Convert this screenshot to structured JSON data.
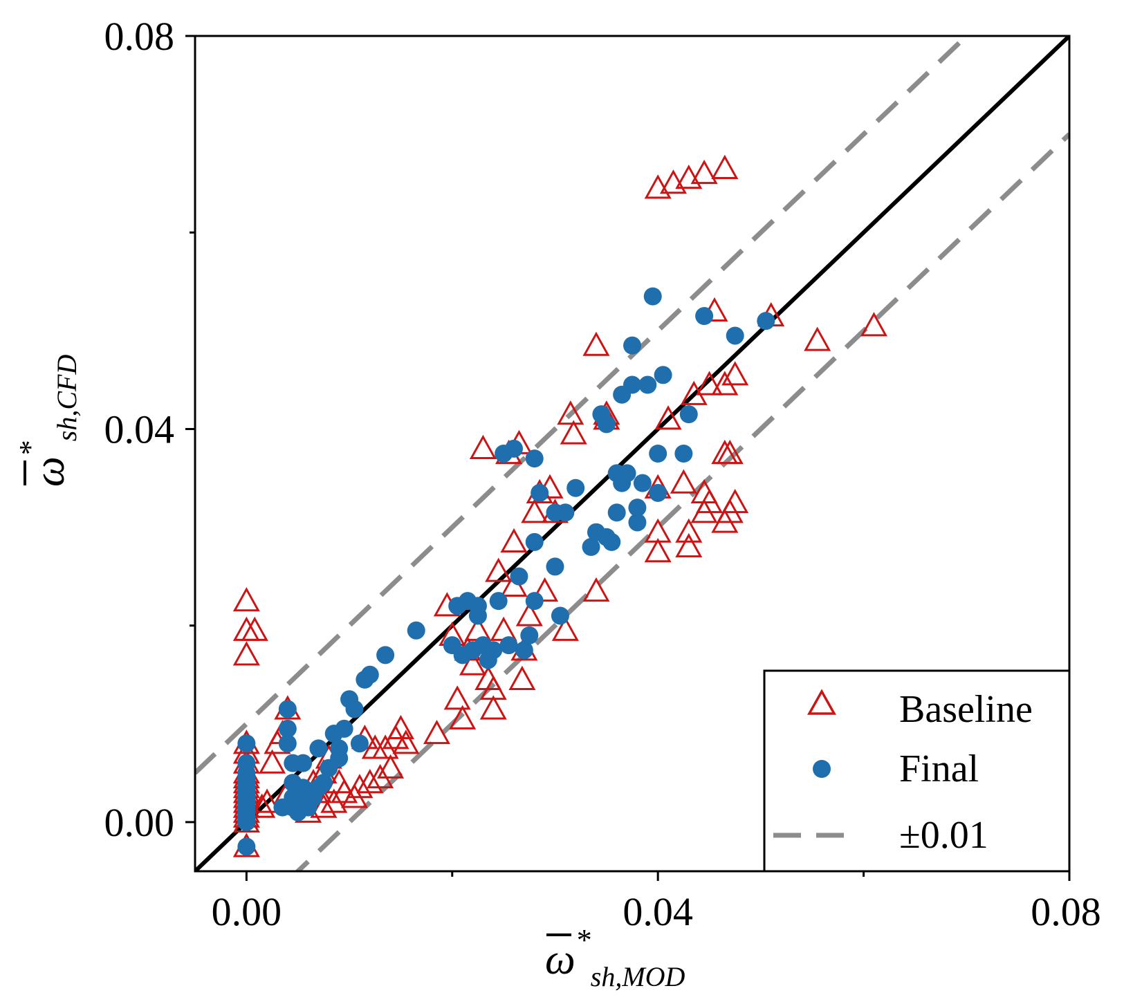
{
  "chart_data": {
    "type": "scatter",
    "title": "",
    "xlabel": {
      "symbol": "ω",
      "sup": "*",
      "sub": "sh,MOD"
    },
    "ylabel": {
      "symbol": "ω",
      "sup": "*",
      "sub": "sh,CFD"
    },
    "xlim": [
      -0.005,
      0.08
    ],
    "ylim": [
      -0.005,
      0.08
    ],
    "x_ticks": [
      0.0,
      0.04,
      0.08
    ],
    "x_tick_labels": [
      "0.00",
      "0.04",
      "0.08"
    ],
    "y_ticks": [
      0.0,
      0.04,
      0.08
    ],
    "y_tick_labels": [
      "0.00",
      "0.04",
      "0.08"
    ],
    "minor_ticks": [
      0.02,
      0.06
    ],
    "grid": false,
    "legend_position": "bottom-right",
    "reference_lines": [
      {
        "name": "y=x",
        "offset": 0.0,
        "style": "solid",
        "color": "#000000"
      },
      {
        "name": "+0.01",
        "offset": 0.01,
        "style": "dashed",
        "color": "#8c8c8c"
      },
      {
        "name": "-0.01",
        "offset": -0.01,
        "style": "dashed",
        "color": "#8c8c8c"
      }
    ],
    "series": [
      {
        "name": "Baseline",
        "marker": "triangle-open",
        "color": "#cc1414",
        "points": [
          [
            0.0,
            0.0
          ],
          [
            0.0,
            0.0005
          ],
          [
            0.0,
            0.001
          ],
          [
            0.0,
            0.0015
          ],
          [
            0.0,
            0.002
          ],
          [
            0.0,
            0.0025
          ],
          [
            0.0,
            0.003
          ],
          [
            0.0,
            0.0035
          ],
          [
            0.0,
            0.004
          ],
          [
            0.0,
            0.0045
          ],
          [
            0.0,
            0.005
          ],
          [
            0.0,
            0.006
          ],
          [
            0.0,
            0.007
          ],
          [
            0.0,
            0.008
          ],
          [
            0.0,
            -0.0025
          ],
          [
            0.0,
            0.0225
          ],
          [
            0.0,
            0.0195
          ],
          [
            0.0,
            0.017
          ],
          [
            0.0008,
            0.0195
          ],
          [
            0.0015,
            0.0015
          ],
          [
            0.002,
            0.002
          ],
          [
            0.0025,
            0.006
          ],
          [
            0.003,
            0.008
          ],
          [
            0.0035,
            0.009
          ],
          [
            0.004,
            0.0115
          ],
          [
            0.004,
            0.003
          ],
          [
            0.0045,
            0.002
          ],
          [
            0.005,
            0.002
          ],
          [
            0.006,
            0.001
          ],
          [
            0.0065,
            0.004
          ],
          [
            0.007,
            0.003
          ],
          [
            0.0075,
            0.005
          ],
          [
            0.0075,
            0.0015
          ],
          [
            0.008,
            0.0065
          ],
          [
            0.0085,
            0.002
          ],
          [
            0.009,
            0.004
          ],
          [
            0.0095,
            0.003
          ],
          [
            0.0105,
            0.0025
          ],
          [
            0.011,
            0.0035
          ],
          [
            0.0115,
            0.0085
          ],
          [
            0.012,
            0.004
          ],
          [
            0.0125,
            0.0075
          ],
          [
            0.013,
            0.0045
          ],
          [
            0.0135,
            0.0075
          ],
          [
            0.014,
            0.0055
          ],
          [
            0.0145,
            0.0085
          ],
          [
            0.015,
            0.0095
          ],
          [
            0.0155,
            0.008
          ],
          [
            0.0185,
            0.009
          ],
          [
            0.0195,
            0.022
          ],
          [
            0.02,
            0.019
          ],
          [
            0.0205,
            0.0125
          ],
          [
            0.021,
            0.0105
          ],
          [
            0.0215,
            0.0175
          ],
          [
            0.022,
            0.016
          ],
          [
            0.0225,
            0.0195
          ],
          [
            0.023,
            0.038
          ],
          [
            0.0235,
            0.0145
          ],
          [
            0.024,
            0.0115
          ],
          [
            0.024,
            0.0135
          ],
          [
            0.0245,
            0.0255
          ],
          [
            0.025,
            0.0195
          ],
          [
            0.0255,
            0.0375
          ],
          [
            0.026,
            0.0285
          ],
          [
            0.026,
            0.024
          ],
          [
            0.0265,
            0.0385
          ],
          [
            0.0268,
            0.0145
          ],
          [
            0.027,
            0.0175
          ],
          [
            0.0275,
            0.021
          ],
          [
            0.028,
            0.0315
          ],
          [
            0.0285,
            0.0335
          ],
          [
            0.029,
            0.0235
          ],
          [
            0.0295,
            0.034
          ],
          [
            0.03,
            0.0315
          ],
          [
            0.031,
            0.0195
          ],
          [
            0.0315,
            0.0415
          ],
          [
            0.0318,
            0.0395
          ],
          [
            0.034,
            0.0485
          ],
          [
            0.034,
            0.0235
          ],
          [
            0.035,
            0.041
          ],
          [
            0.035,
            0.0415
          ],
          [
            0.04,
            0.0645
          ],
          [
            0.0415,
            0.065
          ],
          [
            0.043,
            0.0655
          ],
          [
            0.0445,
            0.066
          ],
          [
            0.0465,
            0.0665
          ],
          [
            0.04,
            0.034
          ],
          [
            0.04,
            0.0295
          ],
          [
            0.04,
            0.0275
          ],
          [
            0.041,
            0.041
          ],
          [
            0.0425,
            0.0345
          ],
          [
            0.043,
            0.0295
          ],
          [
            0.043,
            0.028
          ],
          [
            0.0435,
            0.0435
          ],
          [
            0.0445,
            0.0315
          ],
          [
            0.0445,
            0.0335
          ],
          [
            0.045,
            0.0325
          ],
          [
            0.045,
            0.0445
          ],
          [
            0.0455,
            0.052
          ],
          [
            0.0465,
            0.0445
          ],
          [
            0.0465,
            0.0375
          ],
          [
            0.0465,
            0.0305
          ],
          [
            0.047,
            0.0315
          ],
          [
            0.047,
            0.0375
          ],
          [
            0.0475,
            0.0455
          ],
          [
            0.0475,
            0.0325
          ],
          [
            0.051,
            0.0515
          ],
          [
            0.0555,
            0.049
          ],
          [
            0.061,
            0.0505
          ]
        ]
      },
      {
        "name": "Final",
        "marker": "circle-filled",
        "color": "#1f6ead",
        "points": [
          [
            0.0,
            -0.0025
          ],
          [
            0.0,
            0.0
          ],
          [
            0.0,
            0.0005
          ],
          [
            0.0,
            0.001
          ],
          [
            0.0,
            0.0015
          ],
          [
            0.0,
            0.002
          ],
          [
            0.0,
            0.0025
          ],
          [
            0.0,
            0.003
          ],
          [
            0.0,
            0.0035
          ],
          [
            0.0,
            0.004
          ],
          [
            0.0,
            0.0045
          ],
          [
            0.0,
            0.005
          ],
          [
            0.0,
            0.006
          ],
          [
            0.0,
            0.008
          ],
          [
            0.0035,
            0.0015
          ],
          [
            0.004,
            0.0115
          ],
          [
            0.004,
            0.0095
          ],
          [
            0.004,
            0.008
          ],
          [
            0.0045,
            0.006
          ],
          [
            0.0045,
            0.004
          ],
          [
            0.0045,
            0.0025
          ],
          [
            0.0045,
            0.0015
          ],
          [
            0.005,
            0.001
          ],
          [
            0.005,
            0.002
          ],
          [
            0.0055,
            0.0035
          ],
          [
            0.0055,
            0.006
          ],
          [
            0.006,
            0.003
          ],
          [
            0.006,
            0.0015
          ],
          [
            0.0065,
            0.0025
          ],
          [
            0.007,
            0.0035
          ],
          [
            0.007,
            0.0075
          ],
          [
            0.0075,
            0.004
          ],
          [
            0.008,
            0.0055
          ],
          [
            0.0085,
            0.009
          ],
          [
            0.009,
            0.0075
          ],
          [
            0.009,
            0.0065
          ],
          [
            0.0095,
            0.0095
          ],
          [
            0.01,
            0.0125
          ],
          [
            0.0105,
            0.0115
          ],
          [
            0.011,
            0.008
          ],
          [
            0.0115,
            0.0145
          ],
          [
            0.012,
            0.015
          ],
          [
            0.0135,
            0.017
          ],
          [
            0.0165,
            0.0195
          ],
          [
            0.02,
            0.018
          ],
          [
            0.0205,
            0.022
          ],
          [
            0.021,
            0.017
          ],
          [
            0.0215,
            0.0225
          ],
          [
            0.022,
            0.0175
          ],
          [
            0.0225,
            0.021
          ],
          [
            0.0225,
            0.022
          ],
          [
            0.023,
            0.018
          ],
          [
            0.0235,
            0.0165
          ],
          [
            0.024,
            0.0175
          ],
          [
            0.0245,
            0.0225
          ],
          [
            0.025,
            0.0375
          ],
          [
            0.0255,
            0.018
          ],
          [
            0.026,
            0.038
          ],
          [
            0.0265,
            0.025
          ],
          [
            0.027,
            0.0175
          ],
          [
            0.0275,
            0.019
          ],
          [
            0.028,
            0.037
          ],
          [
            0.028,
            0.0285
          ],
          [
            0.028,
            0.0225
          ],
          [
            0.0285,
            0.0335
          ],
          [
            0.03,
            0.026
          ],
          [
            0.03,
            0.0315
          ],
          [
            0.0305,
            0.021
          ],
          [
            0.031,
            0.0315
          ],
          [
            0.032,
            0.034
          ],
          [
            0.0335,
            0.028
          ],
          [
            0.034,
            0.0295
          ],
          [
            0.0345,
            0.0415
          ],
          [
            0.035,
            0.029
          ],
          [
            0.035,
            0.0405
          ],
          [
            0.0355,
            0.0285
          ],
          [
            0.036,
            0.0355
          ],
          [
            0.036,
            0.0315
          ],
          [
            0.0365,
            0.0345
          ],
          [
            0.0365,
            0.0435
          ],
          [
            0.0375,
            0.0485
          ],
          [
            0.037,
            0.0355
          ],
          [
            0.0375,
            0.0445
          ],
          [
            0.038,
            0.0305
          ],
          [
            0.038,
            0.032
          ],
          [
            0.0385,
            0.0345
          ],
          [
            0.039,
            0.0445
          ],
          [
            0.0395,
            0.0535
          ],
          [
            0.04,
            0.0335
          ],
          [
            0.04,
            0.0375
          ],
          [
            0.0405,
            0.0455
          ],
          [
            0.0425,
            0.0375
          ],
          [
            0.043,
            0.0415
          ],
          [
            0.0445,
            0.0515
          ],
          [
            0.0475,
            0.0495
          ],
          [
            0.0505,
            0.051
          ]
        ]
      }
    ],
    "legend": [
      {
        "label": "Baseline",
        "marker": "triangle-open"
      },
      {
        "label": "Final",
        "marker": "circle-filled"
      },
      {
        "label": "±0.01",
        "marker": "dashed-line"
      }
    ]
  }
}
